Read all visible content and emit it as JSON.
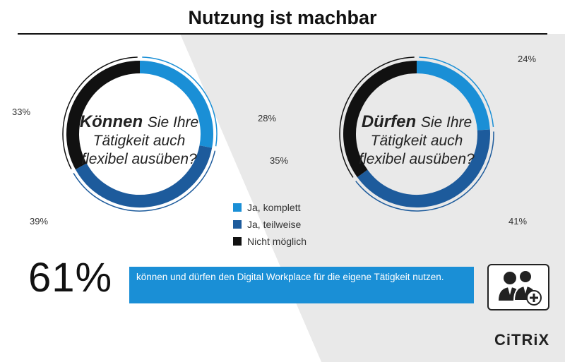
{
  "title": "Nutzung ist machbar",
  "chart_data": [
    {
      "type": "pie",
      "question": {
        "bold": "Können",
        "line1": "Sie Ihre",
        "line2": "Tätigkeit auch",
        "line3": "flexibel ausüben?"
      },
      "categories": [
        "Ja, komplett",
        "Ja, teilweise",
        "Nicht möglich"
      ],
      "values": [
        28,
        39,
        33
      ],
      "labels": [
        "28%",
        "39%",
        "33%"
      ]
    },
    {
      "type": "pie",
      "question": {
        "bold": "Dürfen",
        "line1": "Sie Ihre",
        "line2": "Tätigkeit auch",
        "line3": "flexibel ausüben?"
      },
      "categories": [
        "Ja, komplett",
        "Ja, teilweise",
        "Nicht möglich"
      ],
      "values": [
        24,
        41,
        35
      ],
      "labels": [
        "24%",
        "41%",
        "35%"
      ]
    }
  ],
  "legend": [
    {
      "label": "Ja, komplett",
      "color": "#1a8fd6"
    },
    {
      "label": "Ja, teilweise",
      "color": "#1d5b9c"
    },
    {
      "label": "Nicht möglich",
      "color": "#111111"
    }
  ],
  "summary": {
    "value": "61%",
    "text": "können und dürfen den Digital Workplace für die eigene Tätigkeit nutzen."
  },
  "icon": "users-plus-icon",
  "logo": "CiTRiX",
  "colors": {
    "light_blue": "#1a8fd6",
    "dark_blue": "#1d5b9c",
    "black": "#111111",
    "banner": "#1a8fd6"
  }
}
